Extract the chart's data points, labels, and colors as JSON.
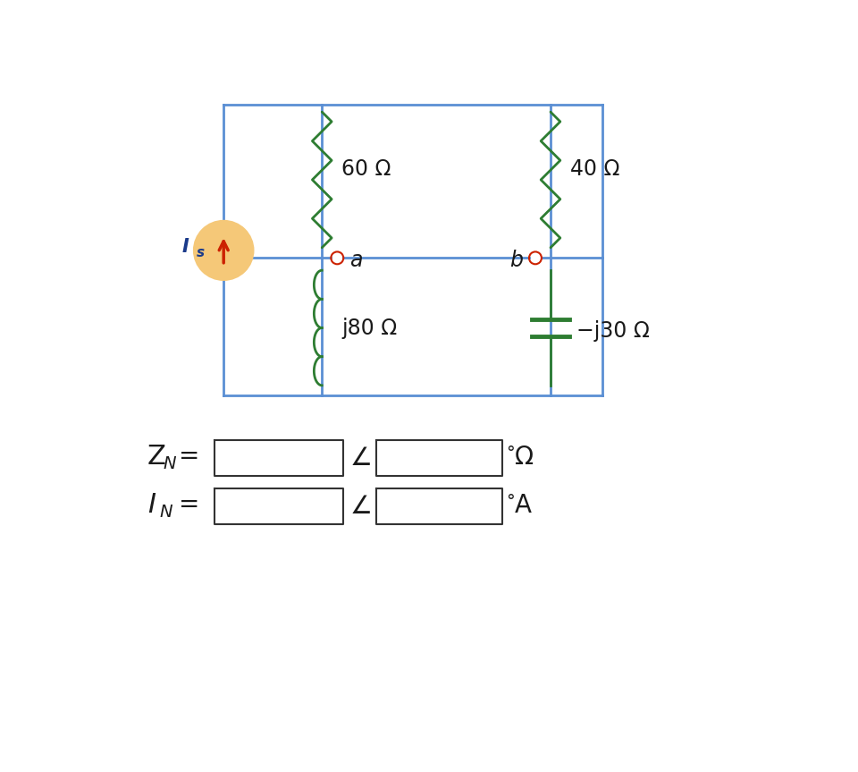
{
  "bg_color": "#ffffff",
  "blue_color": "#5B8FD4",
  "green_color": "#2E7D32",
  "red_color": "#CC2200",
  "cs_fill_color": "#F5C878",
  "cs_edge_color": "#CC2200",
  "text_color": "#1A1A1A",
  "Is_color": "#1A3A8A",
  "resistor_60_label": "60 Ω",
  "resistor_40_label": "40 Ω",
  "inductor_label": "j80 Ω",
  "capacitor_label": "−j30 Ω",
  "node_a_label": "a",
  "node_b_label": "b",
  "omega_label": "Ω",
  "A_label": "A",
  "fig_w": 9.6,
  "fig_h": 8.63
}
